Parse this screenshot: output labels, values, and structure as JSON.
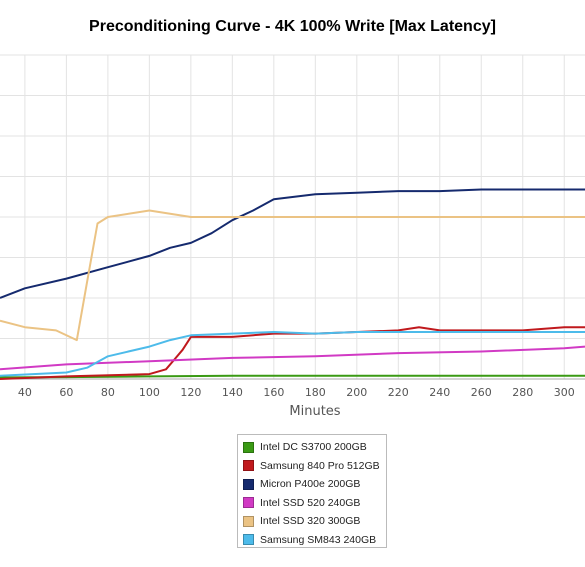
{
  "chart_data": {
    "type": "line",
    "title": "Preconditioning Curve - 4K 100% Write [Max Latency]",
    "xlabel": "Minutes",
    "ylabel": "",
    "x_ticks": [
      40,
      60,
      80,
      100,
      120,
      140,
      160,
      180,
      200,
      220,
      240,
      260,
      280,
      300
    ],
    "xlim": [
      28,
      310
    ],
    "ylim": [
      0,
      10
    ],
    "grid": true,
    "legend_placement": "bottom-center",
    "series": [
      {
        "name": "Intel DC S3700 200GB",
        "color": "#3a9a14",
        "x": [
          28,
          60,
          100,
          140,
          180,
          220,
          260,
          300,
          310
        ],
        "y": [
          0.05,
          0.06,
          0.08,
          0.1,
          0.1,
          0.1,
          0.1,
          0.1,
          0.1
        ]
      },
      {
        "name": "Samsung 840 Pro 512GB",
        "color": "#c0191d",
        "x": [
          28,
          60,
          100,
          108,
          112,
          116,
          120,
          140,
          160,
          180,
          200,
          220,
          230,
          240,
          260,
          280,
          300,
          310
        ],
        "y": [
          0.0,
          0.08,
          0.15,
          0.3,
          0.6,
          0.9,
          1.3,
          1.3,
          1.4,
          1.4,
          1.45,
          1.5,
          1.6,
          1.5,
          1.5,
          1.5,
          1.6,
          1.6
        ]
      },
      {
        "name": "Micron P400e 200GB",
        "color": "#152a6e",
        "x": [
          28,
          40,
          60,
          80,
          100,
          110,
          120,
          130,
          140,
          150,
          160,
          180,
          200,
          220,
          240,
          260,
          280,
          300,
          310
        ],
        "y": [
          2.5,
          2.8,
          3.1,
          3.45,
          3.8,
          4.05,
          4.2,
          4.5,
          4.9,
          5.2,
          5.55,
          5.7,
          5.75,
          5.8,
          5.8,
          5.85,
          5.85,
          5.85,
          5.85
        ]
      },
      {
        "name": "Intel SSD 520 240GB",
        "color": "#d13ac4",
        "x": [
          28,
          60,
          100,
          140,
          180,
          220,
          260,
          300,
          310
        ],
        "y": [
          0.3,
          0.45,
          0.55,
          0.65,
          0.7,
          0.8,
          0.85,
          0.95,
          1.0
        ]
      },
      {
        "name": "Intel SSD 320 300GB",
        "color": "#ebc384",
        "x": [
          28,
          40,
          55,
          65,
          70,
          75,
          80,
          100,
          120,
          140,
          160,
          180,
          200,
          220,
          240,
          260,
          280,
          300,
          310
        ],
        "y": [
          1.8,
          1.6,
          1.5,
          1.2,
          3.0,
          4.8,
          5.0,
          5.2,
          5.0,
          5.0,
          5.0,
          5.0,
          5.0,
          5.0,
          5.0,
          5.0,
          5.0,
          5.0,
          5.0
        ]
      },
      {
        "name": "Samsung SM843 240GB",
        "color": "#4dbbea",
        "x": [
          28,
          60,
          70,
          80,
          100,
          110,
          120,
          140,
          160,
          180,
          200,
          220,
          240,
          260,
          280,
          300,
          310
        ],
        "y": [
          0.1,
          0.2,
          0.35,
          0.7,
          1.0,
          1.2,
          1.35,
          1.4,
          1.45,
          1.4,
          1.45,
          1.45,
          1.45,
          1.45,
          1.45,
          1.45,
          1.45
        ]
      }
    ]
  }
}
